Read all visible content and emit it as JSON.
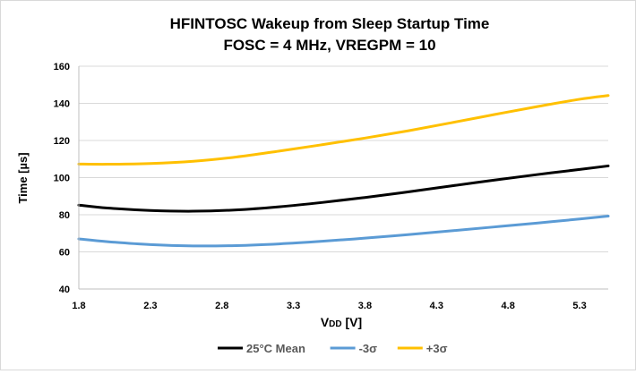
{
  "chart_data": {
    "type": "line",
    "title_line1": "HFINTOSC Wakeup from Sleep Startup Time",
    "title_line2": "FOSC = 4 MHz, VREGPM = 10",
    "xlabel_main": "V",
    "xlabel_sub": "DD",
    "xlabel_unit": " [V]",
    "ylabel": "Time [µs]",
    "xlim": [
      1.8,
      5.5
    ],
    "ylim": [
      40,
      160
    ],
    "x_ticks": [
      1.8,
      2.3,
      2.8,
      3.3,
      3.8,
      4.3,
      4.8,
      5.3
    ],
    "x_tick_labels": [
      "1.8",
      "2.3",
      "2.8",
      "3.3",
      "3.8",
      "4.3",
      "4.8",
      "5.3"
    ],
    "y_ticks": [
      40,
      60,
      80,
      100,
      120,
      140,
      160
    ],
    "y_tick_labels": [
      "40",
      "60",
      "80",
      "100",
      "120",
      "140",
      "160"
    ],
    "grid": "horizontal",
    "legend_position": "bottom",
    "series": [
      {
        "name": "25°C Mean",
        "color": "#000000",
        "x": [
          1.8,
          2.0,
          2.3,
          2.6,
          2.9,
          3.2,
          3.5,
          3.8,
          4.1,
          4.4,
          4.7,
          5.0,
          5.3,
          5.5
        ],
        "values": [
          85.2,
          83.6,
          82.3,
          81.9,
          82.6,
          84.3,
          86.6,
          89.3,
          92.3,
          95.5,
          98.6,
          101.6,
          104.4,
          106.3
        ]
      },
      {
        "name": "-3σ",
        "color": "#5b9bd5",
        "x": [
          1.8,
          2.0,
          2.3,
          2.6,
          2.9,
          3.2,
          3.5,
          3.8,
          4.1,
          4.4,
          4.7,
          5.0,
          5.3,
          5.5
        ],
        "values": [
          67.0,
          65.5,
          63.9,
          63.2,
          63.4,
          64.3,
          65.7,
          67.4,
          69.3,
          71.3,
          73.4,
          75.5,
          77.7,
          79.3
        ]
      },
      {
        "name": "+3σ",
        "color": "#ffc000",
        "x": [
          1.8,
          2.0,
          2.3,
          2.6,
          2.9,
          3.2,
          3.5,
          3.8,
          4.1,
          4.4,
          4.7,
          5.0,
          5.3,
          5.5
        ],
        "values": [
          107.3,
          107.2,
          107.6,
          108.8,
          111.1,
          114.3,
          117.7,
          121.3,
          125.2,
          129.5,
          133.9,
          138.2,
          142.2,
          144.2
        ]
      }
    ]
  }
}
